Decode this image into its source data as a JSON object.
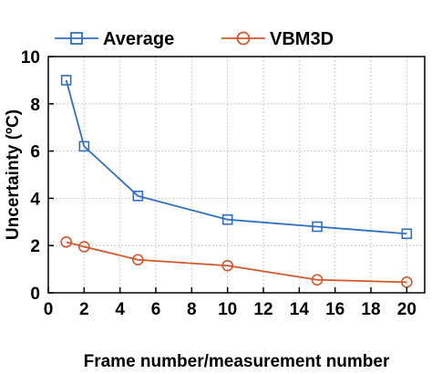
{
  "chart_data": {
    "type": "line",
    "xlabel": "Frame number/measurement number",
    "ylabel": "Uncertainty (ºC)",
    "xlim": [
      0,
      21
    ],
    "ylim": [
      0,
      10
    ],
    "x_ticks": [
      0,
      2,
      4,
      6,
      8,
      10,
      12,
      14,
      16,
      18,
      20
    ],
    "y_ticks": [
      0,
      2,
      4,
      6,
      8,
      10
    ],
    "grid": true,
    "legend_position": "top",
    "series": [
      {
        "name": "Average",
        "color": "#2e6fc2",
        "marker": "square",
        "x": [
          1,
          2,
          5,
          10,
          15,
          20
        ],
        "y": [
          9.0,
          6.2,
          4.1,
          3.1,
          2.8,
          2.5
        ]
      },
      {
        "name": "VBM3D",
        "color": "#d2562a",
        "marker": "circle",
        "x": [
          1,
          2,
          5,
          10,
          15,
          20
        ],
        "y": [
          2.15,
          1.95,
          1.4,
          1.15,
          0.55,
          0.45
        ]
      }
    ]
  }
}
